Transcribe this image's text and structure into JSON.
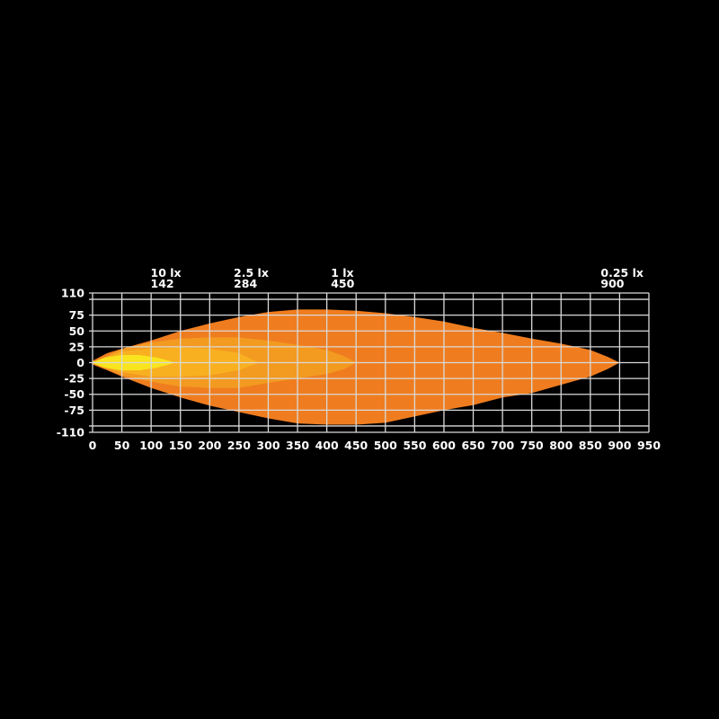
{
  "chart_data": {
    "type": "area",
    "title": "",
    "xlabel": "",
    "ylabel": "",
    "xlim": [
      0,
      950
    ],
    "ylim": [
      -110,
      110
    ],
    "x_ticks": [
      0,
      50,
      100,
      150,
      200,
      250,
      300,
      350,
      400,
      450,
      500,
      550,
      600,
      650,
      700,
      750,
      800,
      850,
      900,
      950
    ],
    "y_ticks": [
      110,
      75,
      50,
      25,
      0,
      -25,
      -50,
      -75,
      -110
    ],
    "y_gridlines": [
      110,
      100,
      75,
      50,
      25,
      0,
      -25,
      -50,
      -75,
      -100,
      -110
    ],
    "grid": true,
    "background": "#000000",
    "grid_color": "#d9d9d9",
    "series": [
      {
        "name": "0.25 lx",
        "distance_label": "900",
        "reach": 900,
        "color": "#ef7d1f",
        "outline": [
          [
            0,
            3
          ],
          [
            25,
            15
          ],
          [
            50,
            22
          ],
          [
            100,
            35
          ],
          [
            150,
            50
          ],
          [
            200,
            62
          ],
          [
            250,
            72
          ],
          [
            300,
            80
          ],
          [
            350,
            84
          ],
          [
            400,
            84
          ],
          [
            450,
            82
          ],
          [
            500,
            78
          ],
          [
            550,
            72
          ],
          [
            600,
            65
          ],
          [
            650,
            55
          ],
          [
            700,
            47
          ],
          [
            750,
            38
          ],
          [
            800,
            30
          ],
          [
            850,
            20
          ],
          [
            880,
            9
          ],
          [
            900,
            0
          ],
          [
            880,
            -10
          ],
          [
            850,
            -22
          ],
          [
            800,
            -35
          ],
          [
            750,
            -48
          ],
          [
            700,
            -55
          ],
          [
            650,
            -67
          ],
          [
            600,
            -75
          ],
          [
            550,
            -85
          ],
          [
            500,
            -95
          ],
          [
            450,
            -98
          ],
          [
            400,
            -98
          ],
          [
            350,
            -96
          ],
          [
            300,
            -88
          ],
          [
            250,
            -78
          ],
          [
            200,
            -68
          ],
          [
            150,
            -55
          ],
          [
            100,
            -40
          ],
          [
            50,
            -22
          ],
          [
            25,
            -12
          ],
          [
            0,
            -3
          ]
        ]
      },
      {
        "name": "1 lx",
        "distance_label": "450",
        "reach": 450,
        "color": "#f39a20",
        "outline": [
          [
            5,
            2
          ],
          [
            50,
            22
          ],
          [
            100,
            32
          ],
          [
            150,
            38
          ],
          [
            200,
            40
          ],
          [
            250,
            40
          ],
          [
            300,
            35
          ],
          [
            350,
            28
          ],
          [
            400,
            20
          ],
          [
            430,
            10
          ],
          [
            450,
            0
          ],
          [
            430,
            -10
          ],
          [
            400,
            -18
          ],
          [
            350,
            -25
          ],
          [
            300,
            -32
          ],
          [
            250,
            -40
          ],
          [
            200,
            -40
          ],
          [
            150,
            -38
          ],
          [
            100,
            -30
          ],
          [
            50,
            -20
          ],
          [
            5,
            -2
          ]
        ]
      },
      {
        "name": "2.5 lx",
        "distance_label": "284",
        "reach": 284,
        "color": "#f8b020",
        "outline": [
          [
            5,
            2
          ],
          [
            50,
            18
          ],
          [
            100,
            22
          ],
          [
            150,
            24
          ],
          [
            200,
            22
          ],
          [
            250,
            15
          ],
          [
            284,
            0
          ],
          [
            250,
            -12
          ],
          [
            200,
            -20
          ],
          [
            150,
            -22
          ],
          [
            100,
            -22
          ],
          [
            50,
            -15
          ],
          [
            5,
            -2
          ]
        ]
      },
      {
        "name": "10 lx",
        "distance_label": "142",
        "reach": 142,
        "color": "#f9e41e",
        "outline": [
          [
            0,
            1
          ],
          [
            20,
            8
          ],
          [
            50,
            12
          ],
          [
            80,
            12
          ],
          [
            110,
            8
          ],
          [
            142,
            0
          ],
          [
            110,
            -8
          ],
          [
            80,
            -12
          ],
          [
            50,
            -12
          ],
          [
            20,
            -8
          ],
          [
            0,
            -1
          ]
        ]
      }
    ]
  }
}
